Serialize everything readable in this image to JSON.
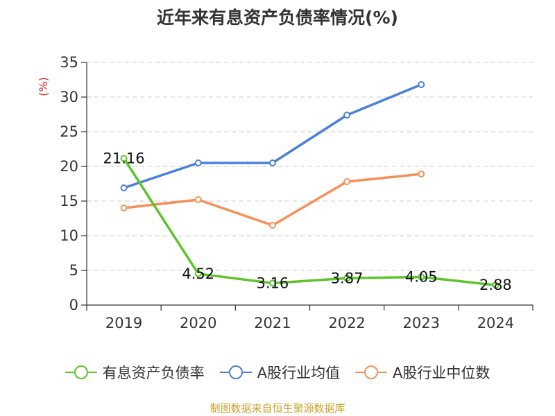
{
  "chart_data": {
    "type": "line",
    "title": "近年来有息资产负债率情况(%)",
    "ylabel": "(%)",
    "xlabel": "",
    "categories": [
      "2019",
      "2020",
      "2021",
      "2022",
      "2023",
      "2024"
    ],
    "ylim": [
      0,
      35
    ],
    "yticks": [
      0,
      5,
      10,
      15,
      20,
      25,
      30,
      35
    ],
    "grid": true,
    "legend_position": "bottom",
    "series": [
      {
        "name": "有息资产负债率",
        "color": "#5dc42b",
        "values": [
          21.16,
          4.52,
          3.16,
          3.87,
          4.05,
          2.88
        ],
        "data_labels": [
          "21.16",
          "4.52",
          "3.16",
          "3.87",
          "4.05",
          "2.88"
        ]
      },
      {
        "name": "A股行业均值",
        "color": "#4a7fdb",
        "values": [
          16.9,
          20.5,
          20.5,
          27.4,
          31.8,
          null
        ]
      },
      {
        "name": "A股行业中位数",
        "color": "#f79058",
        "values": [
          14.0,
          15.2,
          11.5,
          17.8,
          18.9,
          null
        ]
      }
    ]
  },
  "source_note": "制图数据来自恒生聚源数据库"
}
